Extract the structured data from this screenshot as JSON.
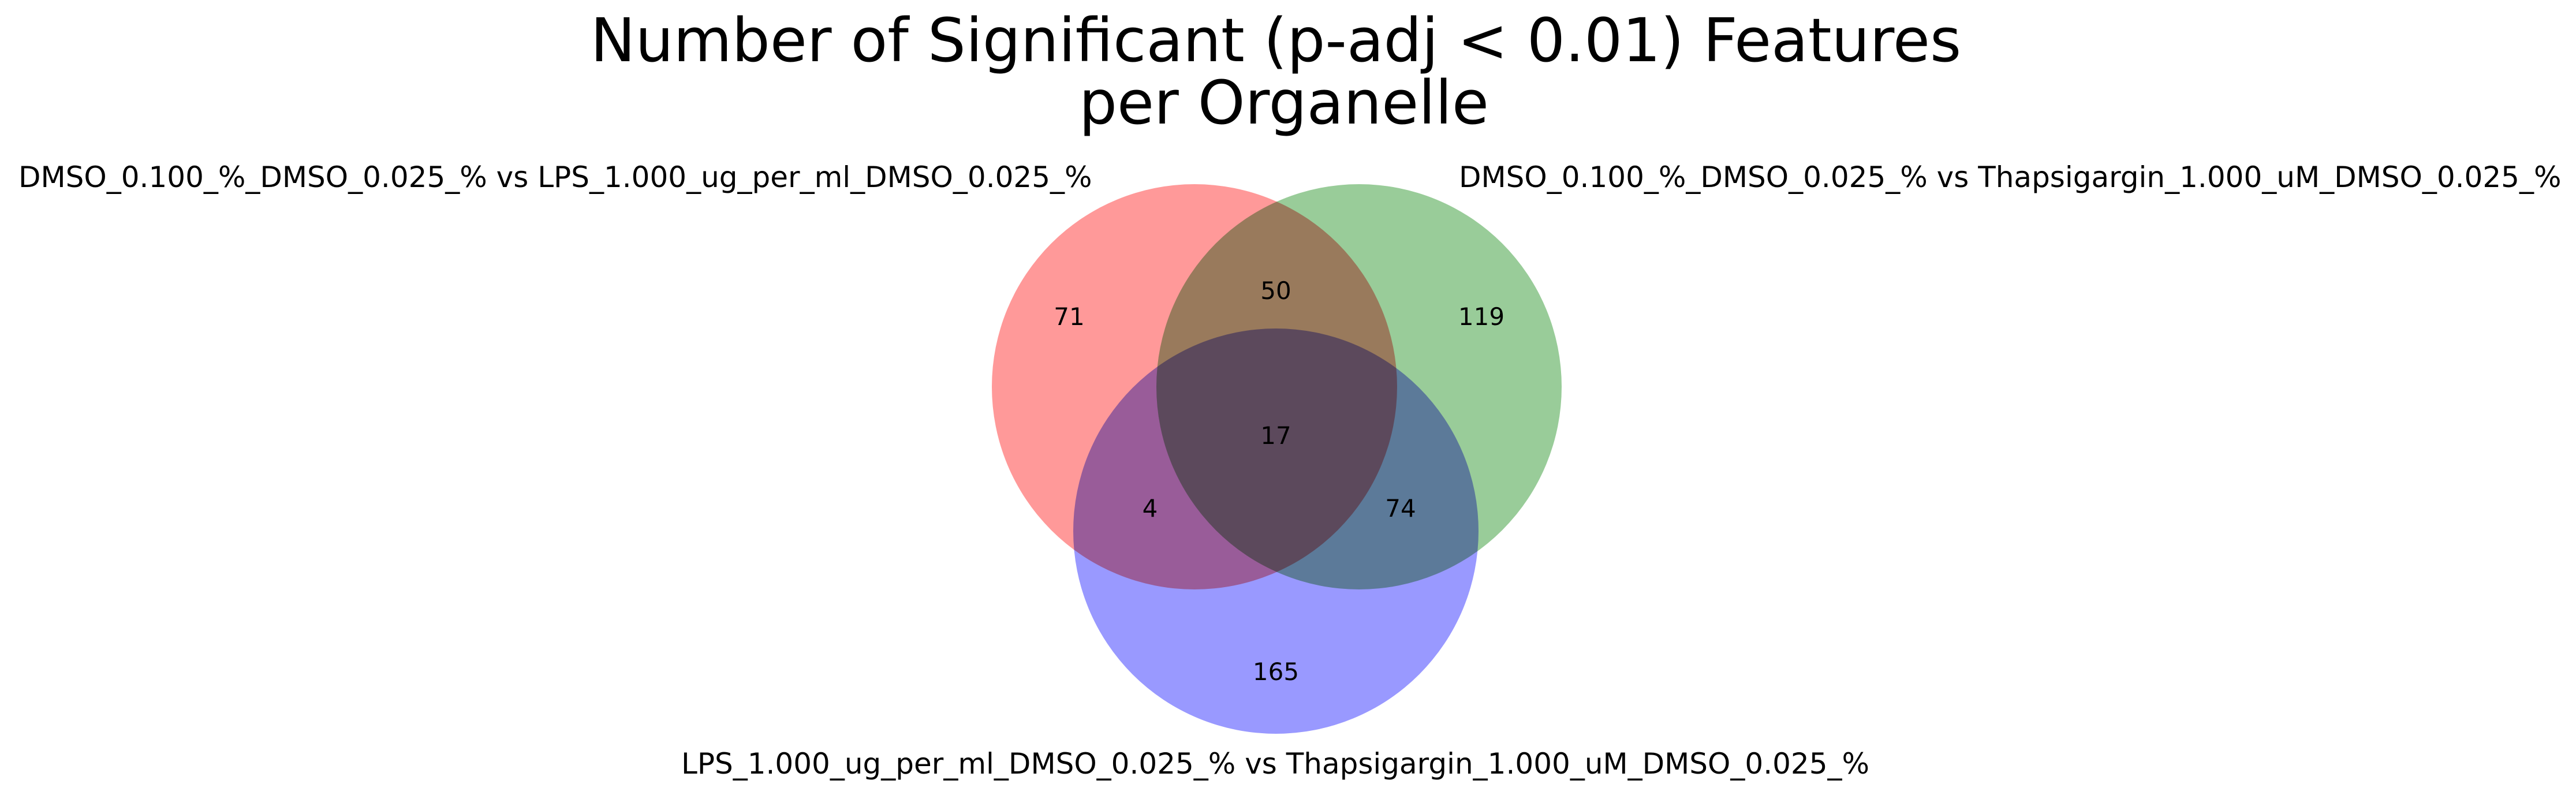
{
  "title": {
    "line1": "Number of Significant (p-adj < 0.01) Features",
    "line2": "per Organelle"
  },
  "sets": {
    "a": {
      "label": "DMSO_0.100_%_DMSO_0.025_% vs LPS_1.000_ug_per_ml_DMSO_0.025_%",
      "color": "#ff9999"
    },
    "b": {
      "label": "DMSO_0.100_%_DMSO_0.025_% vs Thapsigargin_1.000_uM_DMSO_0.025_%",
      "color": "#99cc99"
    },
    "c": {
      "label": "LPS_1.000_ug_per_ml_DMSO_0.025_% vs Thapsigargin_1.000_uM_DMSO_0.025_%",
      "color": "#9999ff"
    }
  },
  "regions": {
    "a_only": "71",
    "b_only": "119",
    "c_only": "165",
    "a_b": "50",
    "a_c": "4",
    "b_c": "74",
    "a_b_c": "17"
  }
}
